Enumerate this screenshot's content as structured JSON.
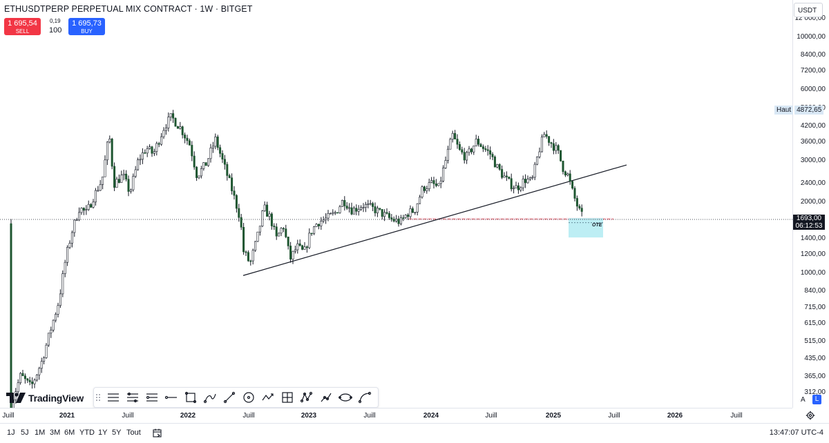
{
  "header": {
    "symbol_title": "ETHUSDTPERP PERPETUAL MIX CONTRACT · 1W · BITGET",
    "sell": {
      "price": "1 695,54",
      "label": "SELL"
    },
    "buy": {
      "price": "1 695,73",
      "label": "BUY"
    },
    "spread": "0,19",
    "lot": "100"
  },
  "price_scale": {
    "currency": "USDT",
    "labels": [
      "12 000,00",
      "10000,00",
      "8400,00",
      "7200,00",
      "6000,00",
      "5000,00",
      "4200,00",
      "3600,00",
      "3000,00",
      "2400,00",
      "2000,00",
      "1400,00",
      "1200,00",
      "1000,00",
      "840,00",
      "715,00",
      "615,00",
      "515,00",
      "435,00",
      "365,00",
      "312,00"
    ],
    "current_price": "1693,00",
    "countdown": "06:12:53",
    "high_label": "Haut",
    "high_value": "4872,65",
    "auto_label": "A",
    "log_label": "L"
  },
  "time_axis": {
    "labels": [
      {
        "text": "Juill",
        "bold": false
      },
      {
        "text": "2021",
        "bold": true
      },
      {
        "text": "Juill",
        "bold": false
      },
      {
        "text": "2022",
        "bold": true
      },
      {
        "text": "Juill",
        "bold": false
      },
      {
        "text": "2023",
        "bold": true
      },
      {
        "text": "Juill",
        "bold": false
      },
      {
        "text": "2024",
        "bold": true
      },
      {
        "text": "Juill",
        "bold": false
      },
      {
        "text": "2025",
        "bold": true
      },
      {
        "text": "Juill",
        "bold": false
      },
      {
        "text": "2026",
        "bold": true
      },
      {
        "text": "Juill",
        "bold": false
      }
    ]
  },
  "bottom_bar": {
    "ranges": [
      "1J",
      "5J",
      "1M",
      "3M",
      "6M",
      "YTD",
      "1Y",
      "5Y",
      "Tout"
    ],
    "clock": "13:47:07 UTC-4"
  },
  "branding": {
    "logo_text": "TradingView"
  },
  "annotations": {
    "ote_label": "OTE"
  },
  "colors": {
    "up": "#ffffff",
    "down": "#1e5631",
    "wick": "#131722",
    "trendline": "#131722",
    "ote_zone": "#b2ebf2",
    "resistance_zone": "#fce4ec",
    "sell": "#f23645",
    "buy": "#2962ff"
  },
  "drawing_tools": [
    "horizontal-lines-icon",
    "parallel-channel-icon",
    "regression-icon",
    "horizontal-ray-icon",
    "rectangle-icon",
    "brush-icon",
    "trend-line-icon",
    "circle-icon",
    "path-icon",
    "grid-icon",
    "pattern-icon",
    "polyline-icon",
    "ellipse-icon",
    "arc-icon"
  ]
}
